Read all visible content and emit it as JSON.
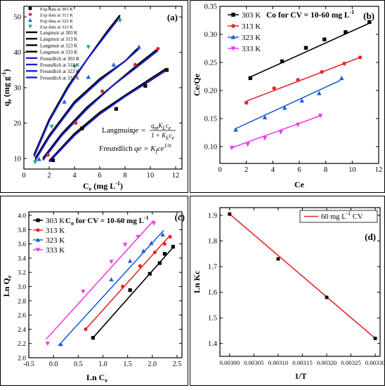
{
  "chart_data": [
    {
      "id": "a",
      "type": "scatter",
      "panel_label": "(a)",
      "xlabel_base": "C",
      "xlabel_sub": "e",
      "xlabel_tail": " (mg L",
      "xlabel_sup": "-1",
      "xlabel_end": ")",
      "ylabel_base": "q",
      "ylabel_sub": "e",
      "ylabel_tail": " (mg g",
      "ylabel_sup": "-1",
      "ylabel_end": ")",
      "xlim": [
        0,
        12.5
      ],
      "ylim": [
        7,
        53
      ],
      "xticks": [
        0,
        2,
        4,
        6,
        8,
        10,
        12
      ],
      "yticks": [
        10,
        20,
        30,
        40,
        50
      ],
      "legend": "top-left",
      "series": [
        {
          "name": "Exp data at 303 K",
          "kind": "marker",
          "marker": "square",
          "color": "#000000",
          "x": [
            2.3,
            4.6,
            7.3,
            9.6,
            11.3
          ],
          "y": [
            9.5,
            18.5,
            24,
            30.5,
            35
          ]
        },
        {
          "name": "Exp data at 313 K",
          "kind": "marker",
          "marker": "circle",
          "color": "#e8262a",
          "x": [
            1.9,
            4.1,
            6.2,
            8.8,
            10.6
          ],
          "y": [
            11,
            20,
            29,
            36.5,
            41
          ]
        },
        {
          "name": "Exp data at 323 K",
          "kind": "marker",
          "marker": "triangle",
          "color": "#1f5fd6",
          "x": [
            1.2,
            3.2,
            5.1,
            7.1,
            9.1
          ],
          "y": [
            9.8,
            26,
            33,
            36.5,
            41.5
          ]
        },
        {
          "name": "Exp data at 333 K",
          "kind": "marker",
          "marker": "triangle-down",
          "color": "#22b17a",
          "x": [
            0.9,
            2.2,
            4.0,
            5.1,
            7.6
          ],
          "y": [
            9,
            19,
            36,
            41.5,
            49
          ]
        },
        {
          "name": "Langmuir at 303 K",
          "kind": "line",
          "color": "#000000",
          "width": 2.2,
          "x": [
            2.0,
            4.0,
            6.0,
            8.0,
            10.0,
            11.3
          ],
          "y": [
            9.3,
            17.0,
            23.0,
            27.8,
            32.5,
            35.5
          ]
        },
        {
          "name": "Langmuir at 313 K",
          "kind": "line",
          "color": "#000000",
          "width": 2.2,
          "x": [
            1.5,
            3.0,
            5.0,
            7.0,
            9.0,
            10.6
          ],
          "y": [
            10.0,
            17.0,
            24.5,
            30.5,
            36.5,
            41.0
          ]
        },
        {
          "name": "Langmuir at 323 K",
          "kind": "line",
          "color": "#000000",
          "width": 2.2,
          "x": [
            0.9,
            2.0,
            4.0,
            6.0,
            8.0,
            9.1
          ],
          "y": [
            10.0,
            16.5,
            26.0,
            32.5,
            37.5,
            41.5
          ]
        },
        {
          "name": "Langmuir at 333 K",
          "kind": "line",
          "color": "#000000",
          "width": 2.2,
          "x": [
            0.8,
            2.0,
            3.5,
            5.0,
            6.5,
            7.6
          ],
          "y": [
            11.0,
            21.0,
            30.5,
            38.0,
            45.5,
            50.5
          ]
        },
        {
          "name": "Freundlich at 303 K",
          "kind": "line",
          "color": "#1a22c4",
          "width": 2.2,
          "x": [
            2.0,
            4.0,
            6.0,
            8.0,
            10.0,
            11.3
          ],
          "y": [
            9.0,
            16.5,
            22.5,
            27.5,
            32.0,
            35.0
          ]
        },
        {
          "name": "Freundlich at 313 K",
          "kind": "line",
          "color": "#1a22c4",
          "width": 2.2,
          "x": [
            1.5,
            3.0,
            5.0,
            7.0,
            9.0,
            10.6
          ],
          "y": [
            9.5,
            16.5,
            24.0,
            30.5,
            36.0,
            40.5
          ]
        },
        {
          "name": "Freundlich at 323 K",
          "kind": "line",
          "color": "#1a22c4",
          "width": 2.2,
          "x": [
            0.9,
            2.0,
            4.0,
            6.0,
            8.0,
            9.1
          ],
          "y": [
            9.5,
            16.0,
            25.5,
            32.0,
            37.5,
            41.0
          ]
        },
        {
          "name": "Freundlich at 333 K",
          "kind": "line",
          "color": "#1a22c4",
          "width": 2.2,
          "x": [
            0.8,
            2.0,
            3.5,
            5.0,
            6.5,
            7.6
          ],
          "y": [
            10.5,
            20.5,
            30.0,
            38.0,
            45.0,
            50.0
          ]
        }
      ],
      "annotations": {
        "langmuir_label": "Langmuir",
        "langmuir_lhs": "qe =",
        "langmuir_num": "q",
        "langmuir_num_sub": "m",
        "langmuir_num_mid": "K",
        "langmuir_num_sub2": "L",
        "langmuir_num_tail": "c",
        "langmuir_num_sub3": "e",
        "langmuir_den": "1 + K",
        "langmuir_den_sub": "L",
        "langmuir_den_tail": "c",
        "langmuir_den_sub2": "e",
        "freundlich_label": "Freundlich",
        "freundlich_lhs": "qe = K",
        "freundlich_sub": "f",
        "freundlich_tail": "ce",
        "freundlich_sup": "1/n"
      }
    },
    {
      "id": "b",
      "type": "scatter",
      "panel_label": "(b)",
      "title": "Co for CV = 10-60 mg L",
      "title_sup": "-1",
      "xlabel": "Ce",
      "ylabel": "Ce/Qe",
      "xlim": [
        0,
        12
      ],
      "ylim": [
        0.07,
        0.35
      ],
      "xticks": [
        0,
        2,
        4,
        6,
        8,
        10,
        12
      ],
      "yticks": [
        0.1,
        0.15,
        0.2,
        0.25,
        0.3,
        0.35
      ],
      "ytick_labels": [
        "0.10",
        "0.15",
        "0.20",
        "0.25",
        "0.30",
        "0.35"
      ],
      "legend": "top-left",
      "series": [
        {
          "name": "303 K",
          "marker": "square",
          "color": "#000000",
          "x": [
            2.3,
            4.7,
            6.5,
            7.9,
            9.5,
            11.3
          ],
          "y": [
            0.222,
            0.252,
            0.276,
            0.291,
            0.304,
            0.322
          ],
          "fit": [
            [
              2.2,
              0.223
            ],
            [
              11.4,
              0.321
            ]
          ]
        },
        {
          "name": "313 K",
          "marker": "circle",
          "color": "#e8262a",
          "x": [
            2.0,
            4.1,
            5.9,
            7.7,
            9.4,
            10.6
          ],
          "y": [
            0.178,
            0.204,
            0.219,
            0.233,
            0.248,
            0.259
          ],
          "fit": [
            [
              1.9,
              0.18
            ],
            [
              10.7,
              0.26
            ]
          ]
        },
        {
          "name": "323 K",
          "marker": "triangle",
          "color": "#1f5fd6",
          "x": [
            1.2,
            3.4,
            4.9,
            6.2,
            7.5,
            9.2
          ],
          "y": [
            0.13,
            0.152,
            0.169,
            0.182,
            0.195,
            0.222
          ],
          "fit": [
            [
              1.1,
              0.131
            ],
            [
              9.1,
              0.218
            ]
          ]
        },
        {
          "name": "333 K",
          "marker": "triangle-down",
          "color": "#f03cec",
          "x": [
            0.9,
            2.1,
            3.4,
            4.6,
            5.9,
            7.6
          ],
          "y": [
            0.098,
            0.104,
            0.115,
            0.126,
            0.139,
            0.155
          ],
          "fit": [
            [
              0.8,
              0.097
            ],
            [
              7.7,
              0.156
            ]
          ]
        }
      ]
    },
    {
      "id": "c",
      "type": "scatter",
      "panel_label": "(c)",
      "title": "C",
      "title_sub": "o",
      "title_tail": " for CV = 10-60 mg L",
      "title_sup": "-1",
      "xlabel_base": "Ln C",
      "xlabel_sub": "e",
      "ylabel_base": "Ln Q",
      "ylabel_sub": "e",
      "xlim": [
        -0.5,
        2.6
      ],
      "ylim": [
        2.0,
        4.05
      ],
      "xticks": [
        -0.5,
        0.0,
        0.5,
        1.0,
        1.5,
        2.0,
        2.5
      ],
      "xtick_labels": [
        "-0.5",
        "0.0",
        "0.5",
        "1.0",
        "1.5",
        "2.0",
        "2.5"
      ],
      "yticks": [
        2.0,
        2.2,
        2.4,
        2.6,
        2.8,
        3.0,
        3.2,
        3.4,
        3.6,
        3.8,
        4.0
      ],
      "ytick_labels": [
        "2.0",
        "2.2",
        "2.4",
        "2.6",
        "2.8",
        "3.0",
        "3.2",
        "3.4",
        "3.6",
        "3.8",
        "4.0"
      ],
      "legend": "top-left",
      "series": [
        {
          "name": "303 K",
          "marker": "square",
          "color": "#000000",
          "x": [
            0.8,
            1.55,
            1.95,
            2.15,
            2.25,
            2.42
          ],
          "y": [
            2.28,
            2.95,
            3.18,
            3.33,
            3.46,
            3.56
          ],
          "fit": [
            [
              0.8,
              2.28
            ],
            [
              2.42,
              3.55
            ]
          ]
        },
        {
          "name": "313 K",
          "marker": "circle",
          "color": "#e8262a",
          "x": [
            0.65,
            1.4,
            1.75,
            2.05,
            2.25,
            2.36
          ],
          "y": [
            2.4,
            3.0,
            3.29,
            3.48,
            3.6,
            3.7
          ],
          "fit": [
            [
              0.65,
              2.4
            ],
            [
              2.36,
              3.72
            ]
          ]
        },
        {
          "name": "323 K",
          "marker": "triangle",
          "color": "#1f5fd6",
          "x": [
            0.15,
            1.17,
            1.55,
            1.82,
            1.98,
            2.21
          ],
          "y": [
            2.19,
            3.1,
            3.36,
            3.5,
            3.61,
            3.73
          ],
          "fit": [
            [
              0.1,
              2.17
            ],
            [
              2.23,
              3.79
            ]
          ]
        },
        {
          "name": "333 K",
          "marker": "triangle-down",
          "color": "#f03cec",
          "x": [
            -0.12,
            0.6,
            1.17,
            1.45,
            1.71,
            2.03
          ],
          "y": [
            2.2,
            2.93,
            3.35,
            3.59,
            3.7,
            3.89
          ],
          "fit": [
            [
              -0.15,
              2.26
            ],
            [
              2.03,
              3.93
            ]
          ]
        }
      ]
    },
    {
      "id": "d",
      "type": "line",
      "panel_label": "(d)",
      "xlabel": "1/T",
      "ylabel": "Ln Kc",
      "xlim": [
        0.00298,
        0.00331
      ],
      "ylim": [
        1.35,
        1.93
      ],
      "xticks": [
        0.003,
        0.00305,
        0.0031,
        0.00315,
        0.0032,
        0.00325,
        0.0033
      ],
      "xtick_labels": [
        "0.00300",
        "0.00305",
        "0.00310",
        "0.00315",
        "0.00320",
        "0.00325",
        "0.00330"
      ],
      "yticks": [
        1.4,
        1.5,
        1.6,
        1.7,
        1.8,
        1.9
      ],
      "ytick_labels": [
        "1.4",
        "1.5",
        "1.6",
        "1.7",
        "1.8",
        "1.9"
      ],
      "legend": "top-right",
      "series": [
        {
          "name": "60 mg L",
          "name_sup": "-1",
          "name_tail": " CV",
          "marker": "square",
          "color": "#e8262a",
          "x": [
            0.003,
            0.0031,
            0.0032,
            0.0033
          ],
          "y": [
            1.905,
            1.73,
            1.58,
            1.42
          ],
          "fit": [
            [
              0.003,
              1.905
            ],
            [
              0.0033,
              1.42
            ]
          ]
        }
      ]
    }
  ]
}
